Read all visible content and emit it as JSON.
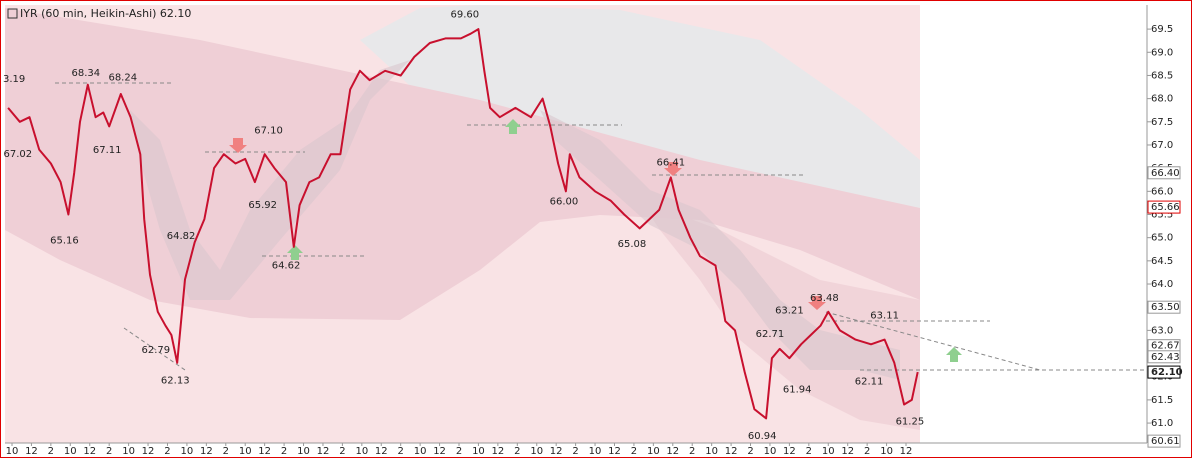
{
  "chart_data": {
    "type": "line",
    "title": "IYR (60 min, Heikin-Ashi) 62.10",
    "clipped_label": "3.19",
    "series": [
      {
        "name": "IYR",
        "color": "#c8102e",
        "x": [
          -0.2,
          0.4,
          0.9,
          1.4,
          2.0,
          2.5,
          2.9,
          3.2,
          3.5,
          3.9,
          4.3,
          4.7,
          5.0,
          5.6,
          6.1,
          6.6,
          6.8,
          7.1,
          7.5,
          7.9,
          8.2,
          8.5,
          8.9,
          9.4,
          9.9,
          10.4,
          10.9,
          11.5,
          12.0,
          12.5,
          13.0,
          13.5,
          14.1,
          14.5,
          14.8,
          15.3,
          15.8,
          16.4,
          16.9,
          17.4,
          17.9,
          18.4,
          19.2,
          20.0,
          20.7,
          21.5,
          22.3,
          23.1,
          23.6,
          24.0,
          24.3,
          24.6,
          25.1,
          25.9,
          26.7,
          27.3,
          27.7,
          28.1,
          28.5,
          28.7,
          29.2,
          30.0,
          30.8,
          31.5,
          32.3,
          32.8,
          33.3,
          33.9,
          34.3,
          34.9,
          35.4,
          36.2,
          36.7,
          37.2,
          37.7,
          38.2,
          38.8,
          39.1,
          39.5,
          40.0,
          40.6,
          41.1,
          41.6,
          42.0,
          42.6,
          43.4,
          44.2,
          44.9,
          45.4,
          45.9,
          46.3,
          46.6
        ],
        "values": [
          67.8,
          67.5,
          67.6,
          66.9,
          66.6,
          66.2,
          65.5,
          66.4,
          67.5,
          68.3,
          67.6,
          67.7,
          67.4,
          68.1,
          67.6,
          66.8,
          65.4,
          64.2,
          63.4,
          63.1,
          62.9,
          62.3,
          64.1,
          64.9,
          65.4,
          66.5,
          66.8,
          66.6,
          66.7,
          66.2,
          66.8,
          66.5,
          66.2,
          64.8,
          65.7,
          66.2,
          66.3,
          66.8,
          66.8,
          68.2,
          68.6,
          68.4,
          68.6,
          68.5,
          68.9,
          69.2,
          69.3,
          69.3,
          69.4,
          69.5,
          68.6,
          67.8,
          67.6,
          67.8,
          67.6,
          68.0,
          67.4,
          66.6,
          66.0,
          66.8,
          66.3,
          66.0,
          65.8,
          65.5,
          65.2,
          65.4,
          65.6,
          66.3,
          65.6,
          65.0,
          64.6,
          64.4,
          63.2,
          63.0,
          62.1,
          61.3,
          61.1,
          62.4,
          62.6,
          62.4,
          62.7,
          62.9,
          63.1,
          63.4,
          63.0,
          62.8,
          62.7,
          62.8,
          62.3,
          61.4,
          61.5,
          62.1
        ]
      }
    ],
    "annotations": [
      {
        "x": 3.8,
        "value": 68.34,
        "position": "above"
      },
      {
        "x": 5.7,
        "value": 68.24,
        "position": "above"
      },
      {
        "x": 0.3,
        "value": 67.02,
        "position": "below"
      },
      {
        "x": 4.9,
        "value": 67.11,
        "position": "below"
      },
      {
        "x": 2.7,
        "value": 65.16,
        "position": "below"
      },
      {
        "x": 8.7,
        "value": 64.82,
        "position": "above"
      },
      {
        "x": 7.4,
        "value": 62.79,
        "position": "below"
      },
      {
        "x": 8.4,
        "value": 62.13,
        "position": "below"
      },
      {
        "x": 13.2,
        "value": 67.1,
        "label": "67.10",
        "position": "above"
      },
      {
        "x": 12.9,
        "value": 65.92,
        "position": "below"
      },
      {
        "x": 14.1,
        "value": 64.62,
        "position": "below"
      },
      {
        "x": 23.3,
        "value": 69.6,
        "label": "69.60",
        "position": "above"
      },
      {
        "x": 28.4,
        "value": 66.0,
        "label": "66.00",
        "position": "below"
      },
      {
        "x": 31.9,
        "value": 65.08,
        "position": "below"
      },
      {
        "x": 33.9,
        "value": 66.41,
        "position": "above"
      },
      {
        "x": 40.0,
        "value": 63.21,
        "position": "above"
      },
      {
        "x": 41.8,
        "value": 63.48,
        "position": "above"
      },
      {
        "x": 39.0,
        "value": 62.71,
        "position": "above"
      },
      {
        "x": 40.4,
        "value": 61.94,
        "position": "below"
      },
      {
        "x": 38.6,
        "value": 60.94,
        "position": "below"
      },
      {
        "x": 44.9,
        "value": 63.11,
        "position": "above"
      },
      {
        "x": 44.1,
        "value": 62.11,
        "position": "below"
      },
      {
        "x": 46.2,
        "value": 61.25,
        "position": "below"
      }
    ],
    "price_markers": [
      {
        "value": 66.4,
        "label": "66.40",
        "color": "#999999"
      },
      {
        "value": 65.66,
        "label": "65.66",
        "color": "#e00000"
      },
      {
        "value": 63.5,
        "label": "63.50",
        "color": "#999999"
      },
      {
        "value": 62.67,
        "label": "62.67",
        "color": "#999999"
      },
      {
        "value": 62.43,
        "label": "62.43",
        "color": "#999999"
      },
      {
        "value": 62.1,
        "label": "62.10",
        "color": "#000000"
      },
      {
        "value": 60.61,
        "label": "60.61",
        "color": "#999999"
      }
    ],
    "ylim": [
      60.57,
      70.02
    ],
    "yticks": [
      {
        "value": 61,
        "label": "61.0"
      },
      61.5,
      {
        "value": 62,
        "label": "62.0"
      },
      62.5,
      {
        "value": 63,
        "label": "63.0"
      },
      63.5,
      {
        "value": 64,
        "label": "64.0"
      },
      64.5,
      {
        "value": 65,
        "label": "65.0"
      },
      65.5,
      {
        "value": 66,
        "label": "66.0"
      },
      66.5,
      {
        "value": 67,
        "label": "67.0"
      },
      67.5,
      {
        "value": 68,
        "label": "68.0"
      },
      68.5,
      {
        "value": 69,
        "label": "69.0"
      },
      69.5
    ],
    "xlim": [
      -0.36,
      58.4
    ],
    "xticks": [
      {
        "value": 0,
        "label": "10"
      },
      {
        "value": 1,
        "label": "12"
      },
      {
        "value": 2,
        "label": "2"
      },
      {
        "value": 3,
        "label": "10"
      },
      {
        "value": 4,
        "label": "12"
      },
      {
        "value": 5,
        "label": "2"
      },
      {
        "value": 6,
        "label": "10"
      },
      {
        "value": 7,
        "label": "12"
      },
      {
        "value": 8,
        "label": "2"
      },
      {
        "value": 9,
        "label": "10"
      },
      {
        "value": 10,
        "label": "12"
      },
      {
        "value": 11,
        "label": "2"
      },
      {
        "value": 12,
        "label": "10"
      },
      {
        "value": 13,
        "label": "12"
      },
      {
        "value": 14,
        "label": "2"
      },
      {
        "value": 15,
        "label": "10"
      },
      {
        "value": 16,
        "label": "12"
      },
      {
        "value": 17,
        "label": "2"
      },
      {
        "value": 18,
        "label": "10"
      },
      {
        "value": 19,
        "label": "12"
      },
      {
        "value": 20,
        "label": "2"
      },
      {
        "value": 21,
        "label": "10"
      },
      {
        "value": 22,
        "label": "12"
      },
      {
        "value": 23,
        "label": "2"
      },
      {
        "value": 24,
        "label": "10"
      },
      {
        "value": 25,
        "label": "12"
      },
      {
        "value": 26,
        "label": "2"
      },
      {
        "value": 27,
        "label": "10"
      },
      {
        "value": 28,
        "label": "12"
      },
      {
        "value": 29,
        "label": "2"
      },
      {
        "value": 30,
        "label": "10"
      },
      {
        "value": 31,
        "label": "12"
      },
      {
        "value": 32,
        "label": "2"
      },
      {
        "value": 33,
        "label": "10"
      },
      {
        "value": 34,
        "label": "12"
      },
      {
        "value": 35,
        "label": "2"
      },
      {
        "value": 36,
        "label": "10"
      },
      {
        "value": 37,
        "label": "12"
      },
      {
        "value": 38,
        "label": "2"
      },
      {
        "value": 39,
        "label": "10"
      },
      {
        "value": 40,
        "label": "12"
      },
      {
        "value": 41,
        "label": "2"
      },
      {
        "value": 42,
        "label": "10"
      },
      {
        "value": 43,
        "label": "12"
      },
      {
        "value": 44,
        "label": "2"
      },
      {
        "value": 45,
        "label": "10"
      },
      {
        "value": 46,
        "label": "12"
      }
    ]
  }
}
